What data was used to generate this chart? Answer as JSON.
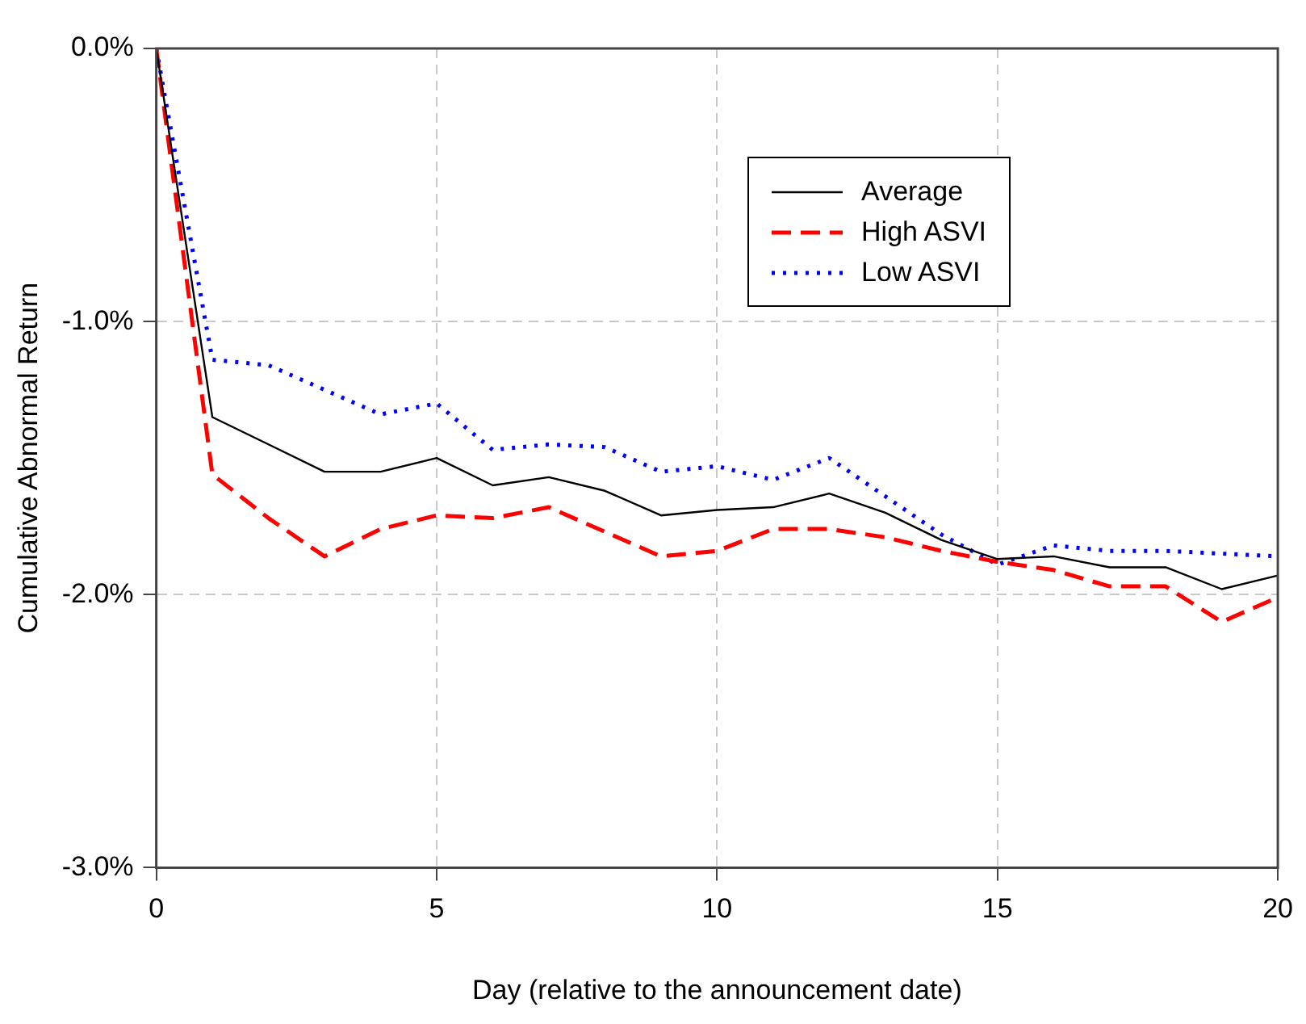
{
  "chart_data": {
    "type": "line",
    "xlabel": "Day (relative to the announcement date)",
    "ylabel": "Cumulative Abnormal Return",
    "x": [
      0,
      1,
      2,
      3,
      4,
      5,
      6,
      7,
      8,
      9,
      10,
      11,
      12,
      13,
      14,
      15,
      16,
      17,
      18,
      19,
      20
    ],
    "xlim": [
      0,
      20
    ],
    "xticks": [
      0,
      5,
      10,
      15,
      20
    ],
    "ylim": [
      -3,
      0
    ],
    "yticks": [
      {
        "value": -3,
        "label": "-3.0%"
      },
      {
        "value": -2,
        "label": "-2.0%"
      },
      {
        "value": -1,
        "label": "-1.0%"
      },
      {
        "value": 0,
        "label": "0.0%"
      }
    ],
    "grid": true,
    "legend": "top right",
    "marker": "none",
    "series": [
      {
        "name": "Average",
        "color": "#000000",
        "line_style": "solid",
        "values": [
          0,
          -1.35,
          -1.45,
          -1.55,
          -1.55,
          -1.5,
          -1.6,
          -1.57,
          -1.62,
          -1.71,
          -1.69,
          -1.68,
          -1.63,
          -1.7,
          -1.8,
          -1.87,
          -1.86,
          -1.9,
          -1.9,
          -1.98,
          -1.93
        ]
      },
      {
        "name": "High ASVI",
        "color": "#ff0000",
        "line_style": "dashed",
        "values": [
          0,
          -1.56,
          -1.72,
          -1.86,
          -1.76,
          -1.71,
          -1.72,
          -1.68,
          -1.77,
          -1.86,
          -1.84,
          -1.76,
          -1.76,
          -1.79,
          -1.84,
          -1.88,
          -1.91,
          -1.97,
          -1.97,
          -2.1,
          -2.01
        ]
      },
      {
        "name": "Low ASVI",
        "color": "#0000ff",
        "line_style": "dotted",
        "values": [
          0,
          -1.14,
          -1.16,
          -1.25,
          -1.34,
          -1.3,
          -1.47,
          -1.45,
          -1.46,
          -1.55,
          -1.53,
          -1.58,
          -1.5,
          -1.64,
          -1.78,
          -1.89,
          -1.82,
          -1.84,
          -1.84,
          -1.85,
          -1.86
        ]
      }
    ]
  }
}
